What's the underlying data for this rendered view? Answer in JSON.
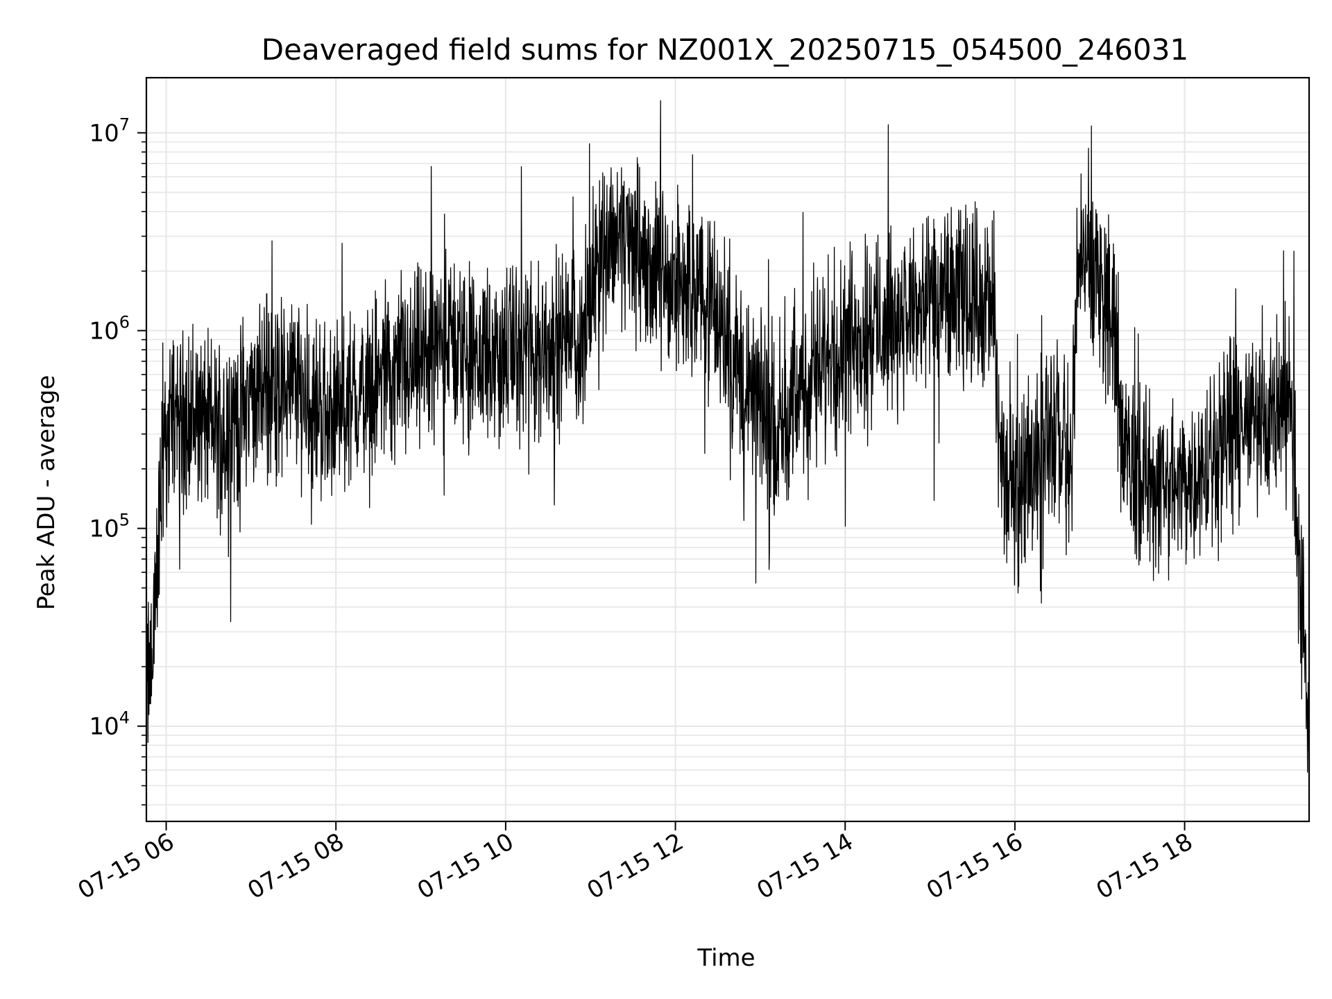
{
  "chart_data": {
    "type": "line",
    "title": "Deaveraged field sums for NZ001X_20250715_054500_246031",
    "xlabel": "Time",
    "ylabel": "Peak ADU - average",
    "yscale": "log",
    "ylim": [
      3300,
      19000000
    ],
    "xlim": [
      "2025-07-15 05:46",
      "2025-07-15 19:28"
    ],
    "grid": true,
    "line_color": "#000000",
    "grid_color": "#e6e6e6",
    "x_ticks": [
      {
        "value": "2025-07-15 06:00",
        "label": "07-15 06"
      },
      {
        "value": "2025-07-15 08:00",
        "label": "07-15 08"
      },
      {
        "value": "2025-07-15 10:00",
        "label": "07-15 10"
      },
      {
        "value": "2025-07-15 12:00",
        "label": "07-15 12"
      },
      {
        "value": "2025-07-15 14:00",
        "label": "07-15 14"
      },
      {
        "value": "2025-07-15 16:00",
        "label": "07-15 16"
      },
      {
        "value": "2025-07-15 18:00",
        "label": "07-15 18"
      }
    ],
    "y_ticks": [
      {
        "value": 10000,
        "base": "10",
        "exp": "4"
      },
      {
        "value": 100000,
        "base": "10",
        "exp": "5"
      },
      {
        "value": 1000000,
        "base": "10",
        "exp": "6"
      },
      {
        "value": 10000000,
        "base": "10",
        "exp": "7"
      }
    ],
    "series": [
      {
        "x": [
          "2025-07-15 05:46",
          "2025-07-15 05:50",
          "2025-07-15 05:54",
          "2025-07-15 05:58",
          "2025-07-15 06:05",
          "2025-07-15 06:20",
          "2025-07-15 06:40",
          "2025-07-15 07:00",
          "2025-07-15 07:15",
          "2025-07-15 07:30",
          "2025-07-15 07:45",
          "2025-07-15 08:00",
          "2025-07-15 08:30",
          "2025-07-15 09:00",
          "2025-07-15 09:20",
          "2025-07-15 09:40",
          "2025-07-15 10:00",
          "2025-07-15 10:30",
          "2025-07-15 10:55",
          "2025-07-15 11:05",
          "2025-07-15 11:20",
          "2025-07-15 11:40",
          "2025-07-15 12:00",
          "2025-07-15 12:20",
          "2025-07-15 12:30",
          "2025-07-15 12:50",
          "2025-07-15 13:10",
          "2025-07-15 13:30",
          "2025-07-15 13:40",
          "2025-07-15 14:00",
          "2025-07-15 14:30",
          "2025-07-15 15:00",
          "2025-07-15 15:20",
          "2025-07-15 15:40",
          "2025-07-15 15:45",
          "2025-07-15 15:50",
          "2025-07-15 16:00",
          "2025-07-15 16:15",
          "2025-07-15 16:30",
          "2025-07-15 16:40",
          "2025-07-15 16:45",
          "2025-07-15 16:55",
          "2025-07-15 17:10",
          "2025-07-15 17:15",
          "2025-07-15 17:30",
          "2025-07-15 17:50",
          "2025-07-15 18:10",
          "2025-07-15 18:30",
          "2025-07-15 18:50",
          "2025-07-15 19:10",
          "2025-07-15 19:15",
          "2025-07-15 19:20",
          "2025-07-15 19:25",
          "2025-07-15 19:28"
        ],
        "y": [
          15000,
          22000,
          80000,
          250000,
          400000,
          350000,
          320000,
          450000,
          500000,
          550000,
          420000,
          380000,
          550000,
          700000,
          900000,
          700000,
          750000,
          850000,
          900000,
          2500000,
          3200000,
          2200000,
          1800000,
          1500000,
          1200000,
          500000,
          350000,
          500000,
          600000,
          900000,
          1100000,
          1300000,
          1500000,
          1400000,
          1200000,
          200000,
          150000,
          250000,
          300000,
          200000,
          2500000,
          2000000,
          1200000,
          250000,
          180000,
          150000,
          200000,
          300000,
          350000,
          450000,
          400000,
          100000,
          20000,
          9000
        ]
      }
    ]
  }
}
